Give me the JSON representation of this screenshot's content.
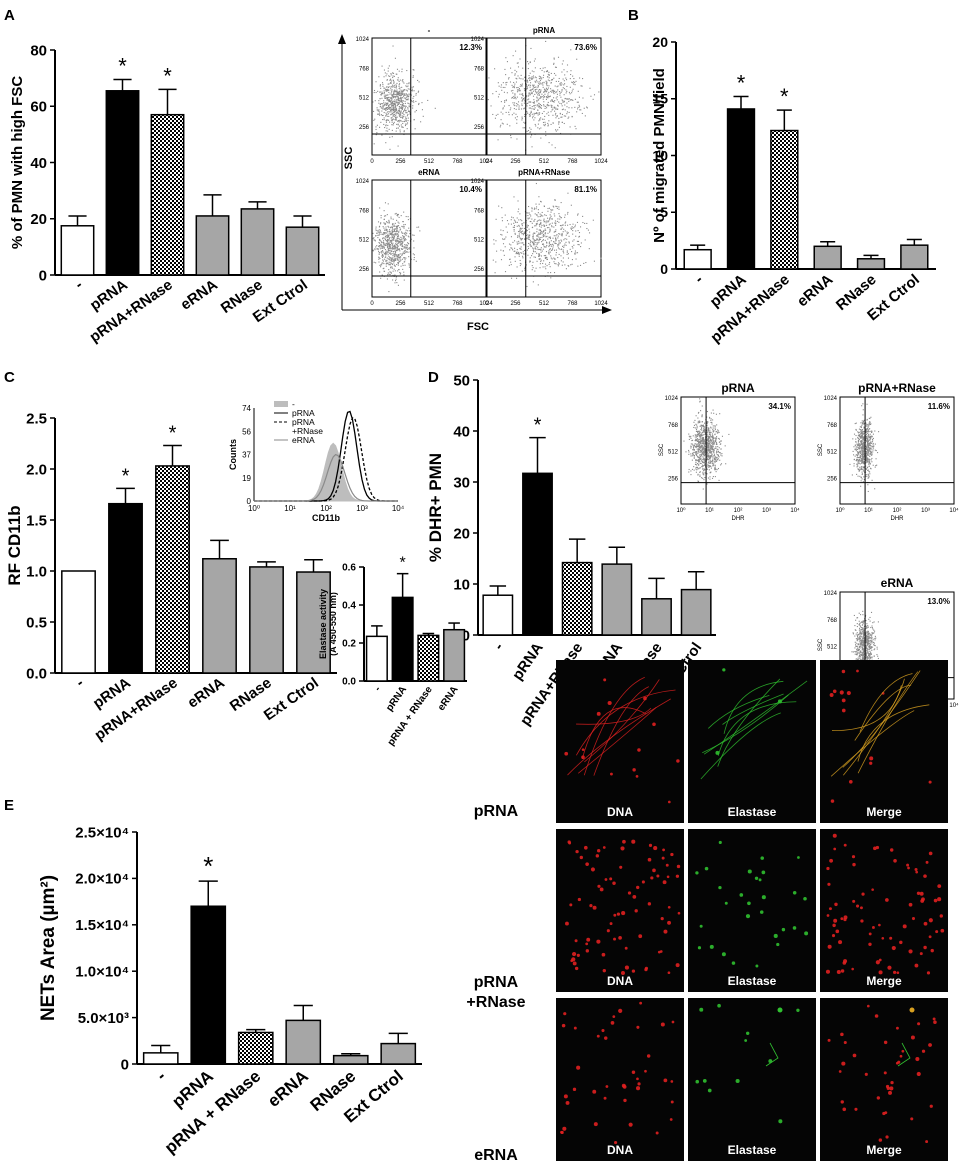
{
  "panel_letters": {
    "A": "A",
    "B": "B",
    "C": "C",
    "D": "D",
    "E": "E"
  },
  "colors": {
    "white": "#ffffff",
    "black": "#000000",
    "grey": "#a6a6a6",
    "hatch": "checkered black/white",
    "flow_dots": "#888888",
    "dna": "#e02020",
    "elastase": "#30c030"
  },
  "chart_data": [
    {
      "id": "A_bar",
      "type": "bar",
      "categories": [
        "-",
        "pRNA",
        "pRNA+RNase",
        "eRNA",
        "RNase",
        "Ext Ctrol"
      ],
      "values": [
        17.5,
        65.5,
        57.0,
        21.0,
        23.5,
        17.0
      ],
      "errors": [
        3.5,
        4.0,
        9.0,
        7.5,
        2.5,
        4.0
      ],
      "significance": [
        "",
        "*",
        "*",
        "",
        "",
        ""
      ],
      "fills": [
        "white",
        "black",
        "hatch",
        "grey",
        "grey",
        "grey"
      ],
      "ylabel": "% of PMN with high FSC",
      "ylim": [
        0,
        80
      ],
      "yticks": [
        "0",
        "20",
        "40",
        "60",
        "80"
      ]
    },
    {
      "id": "A_flow",
      "type": "scatter",
      "xlabel": "FSC",
      "ylabel": "SSC",
      "plots": [
        {
          "label": "-",
          "percent": "12.3%"
        },
        {
          "label": "pRNA",
          "percent": "73.6%"
        },
        {
          "label": "eRNA",
          "percent": "10.4%"
        },
        {
          "label": "pRNA+RNase",
          "percent": "81.1%"
        }
      ],
      "xticks": [
        "0",
        "256",
        "512",
        "768",
        "1024"
      ],
      "yticks": [
        "256",
        "512",
        "768",
        "1024"
      ]
    },
    {
      "id": "B_bar",
      "type": "bar",
      "categories": [
        "-",
        "pRNA",
        "pRNA+RNase",
        "eRNA",
        "RNase",
        "Ext Ctrol"
      ],
      "values": [
        1.7,
        14.1,
        12.2,
        2.0,
        0.9,
        2.1
      ],
      "errors": [
        0.4,
        1.1,
        1.8,
        0.4,
        0.3,
        0.5
      ],
      "significance": [
        "",
        "*",
        "*",
        "",
        "",
        ""
      ],
      "fills": [
        "white",
        "black",
        "hatch",
        "grey",
        "grey",
        "grey"
      ],
      "ylabel": "Nº of migrated PMN/field",
      "ylim": [
        0,
        20
      ],
      "yticks": [
        "0",
        "5",
        "10",
        "15",
        "20"
      ]
    },
    {
      "id": "C_bar",
      "type": "bar",
      "categories": [
        "-",
        "pRNA",
        "pRNA+RNase",
        "eRNA",
        "RNase",
        "Ext Ctrol"
      ],
      "values": [
        1.0,
        1.66,
        2.03,
        1.12,
        1.04,
        0.99
      ],
      "errors": [
        0.0,
        0.15,
        0.2,
        0.18,
        0.05,
        0.12
      ],
      "significance": [
        "",
        "*",
        "*",
        "",
        "",
        ""
      ],
      "fills": [
        "white",
        "black",
        "hatch",
        "grey",
        "grey",
        "grey"
      ],
      "ylabel": "RF CD11b",
      "ylim": [
        0,
        2.5
      ],
      "yticks": [
        "0.0",
        "0.5",
        "1.0",
        "1.5",
        "2.0",
        "2.5"
      ]
    },
    {
      "id": "C_histogram",
      "type": "line",
      "xlabel": "CD11b",
      "ylabel": "Counts",
      "legend": [
        "-",
        "pRNA",
        "pRNA",
        "+RNase",
        "eRNA"
      ],
      "yticks": [
        "0",
        "19",
        "37",
        "56",
        "74"
      ],
      "xticks": [
        "10⁰",
        "10¹",
        "10²",
        "10³",
        "10⁴"
      ]
    },
    {
      "id": "D_bar",
      "type": "bar",
      "categories": [
        "-",
        "pRNA",
        "pRNA+RNase",
        "eRNA",
        "RNase",
        "Ext Ctrol"
      ],
      "values": [
        7.8,
        31.7,
        14.2,
        13.9,
        7.1,
        8.9
      ],
      "errors": [
        1.8,
        7.0,
        4.6,
        3.3,
        4.0,
        3.5
      ],
      "significance": [
        "",
        "*",
        "",
        "",
        "",
        ""
      ],
      "fills": [
        "white",
        "black",
        "hatch",
        "grey",
        "grey",
        "grey"
      ],
      "ylabel": "% DHR+ PMN",
      "ylim": [
        0,
        50
      ],
      "yticks": [
        "0",
        "10",
        "20",
        "30",
        "40",
        "50"
      ]
    },
    {
      "id": "D_flow",
      "type": "scatter",
      "xlabel": "DHR",
      "ylabel": "SSC",
      "plots": [
        {
          "label": "pRNA",
          "percent": "34.1%"
        },
        {
          "label": "pRNA+RNase",
          "percent": "11.6%"
        },
        {
          "label": "eRNA",
          "percent": "13.0%"
        }
      ],
      "yticks": [
        "256",
        "512",
        "768",
        "1024"
      ],
      "xticks": [
        "10⁰",
        "10¹",
        "10²",
        "10³",
        "10⁴"
      ]
    },
    {
      "id": "E_bar",
      "type": "bar",
      "categories": [
        "-",
        "pRNA",
        "pRNA + RNase",
        "eRNA",
        "RNase",
        "Ext Ctrol"
      ],
      "values": [
        1200,
        17000,
        3400,
        4700,
        900,
        2200
      ],
      "errors": [
        800,
        2700,
        300,
        1600,
        200,
        1100
      ],
      "significance": [
        "",
        "*",
        "",
        "",
        "",
        ""
      ],
      "fills": [
        "white",
        "black",
        "hatch",
        "grey",
        "grey",
        "grey"
      ],
      "ylabel": "NETs Area (µm²)",
      "ylim": [
        0,
        25000
      ],
      "yticks": [
        "0",
        "5.0×10³",
        "1.0×10⁴",
        "1.5×10⁴",
        "2.0×10⁴",
        "2.5×10⁴"
      ]
    },
    {
      "id": "E_inset",
      "type": "bar",
      "categories": [
        "-",
        "pRNA",
        "pRNA + RNase",
        "eRNA"
      ],
      "values": [
        0.235,
        0.44,
        0.24,
        0.27
      ],
      "errors": [
        0.055,
        0.125,
        0.01,
        0.035
      ],
      "significance": [
        "",
        "*",
        "",
        ""
      ],
      "fills": [
        "white",
        "black",
        "hatch",
        "grey"
      ],
      "ylabel": "Elastase activity",
      "ylabel2": "(A 450-550 nm)",
      "ylim": [
        0,
        0.6
      ],
      "yticks": [
        "0.0",
        "0.2",
        "0.4",
        "0.6"
      ]
    }
  ],
  "microscopy": {
    "rows": [
      "pRNA",
      "pRNA",
      "+RNase",
      "eRNA"
    ],
    "channels": [
      "DNA",
      "Elastase",
      "Merge"
    ]
  }
}
